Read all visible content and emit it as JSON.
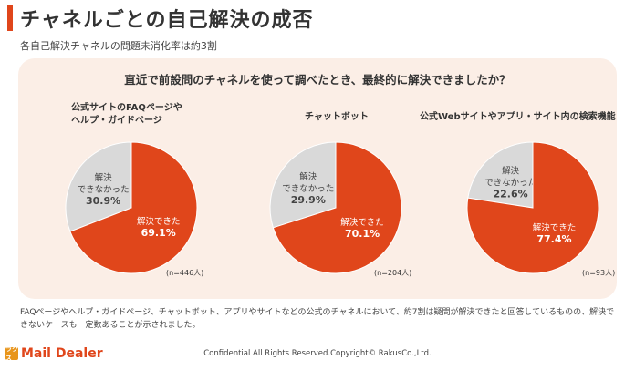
{
  "header": {
    "title": "チャネルごとの自己解決の成否",
    "subtitle": "各自己解決チャネルの問題未消化率は約3割"
  },
  "colors": {
    "accent": "#e0461b",
    "resolved": "#e0461b",
    "unresolved": "#d9d9d9",
    "panel": "#fbeee6"
  },
  "chart_data": [
    {
      "type": "pie",
      "title_lines": [
        "公式サイトのFAQページや",
        "ヘルプ・ガイドページ"
      ],
      "question": "直近で前設問のチャネルを使って調べたとき、最終的に解決できましたか？",
      "slices": [
        {
          "label_lines": [
            "解決",
            "できなかった"
          ],
          "value": 30.9,
          "value_label": "30.9%",
          "color": "#d9d9d9"
        },
        {
          "label_lines": [
            "解決できた"
          ],
          "value": 69.1,
          "value_label": "69.1%",
          "color": "#e0461b"
        }
      ],
      "n": "(n=446人)"
    },
    {
      "type": "pie",
      "title_lines": [
        "チャットボット"
      ],
      "slices": [
        {
          "label_lines": [
            "解決",
            "できなかった"
          ],
          "value": 29.9,
          "value_label": "29.9%",
          "color": "#d9d9d9"
        },
        {
          "label_lines": [
            "解決できた"
          ],
          "value": 70.1,
          "value_label": "70.1%",
          "color": "#e0461b"
        }
      ],
      "n": "(n=204人)"
    },
    {
      "type": "pie",
      "title_lines": [
        "公式Webサイトやアプリ・サイト内の検索機能"
      ],
      "slices": [
        {
          "label_lines": [
            "解決",
            "できなかった"
          ],
          "value": 22.6,
          "value_label": "22.6%",
          "color": "#d9d9d9"
        },
        {
          "label_lines": [
            "解決できた"
          ],
          "value": 77.4,
          "value_label": "77.4%",
          "color": "#e0461b"
        }
      ],
      "n": "(n=93人)"
    }
  ],
  "footnote": "FAQページやヘルプ・ガイドページ、チャットボット、アプリやサイトなどの公式のチャネルにおいて、約7割は疑問が解決できたと回答しているものの、解決できないケースも一定数あることが示されました。",
  "footer": {
    "logo_mark": "ラクス",
    "logo_text": "Mail Dealer",
    "copyright": "Confidential All Rights Reserved.Copyright© RakusCo.,Ltd."
  }
}
